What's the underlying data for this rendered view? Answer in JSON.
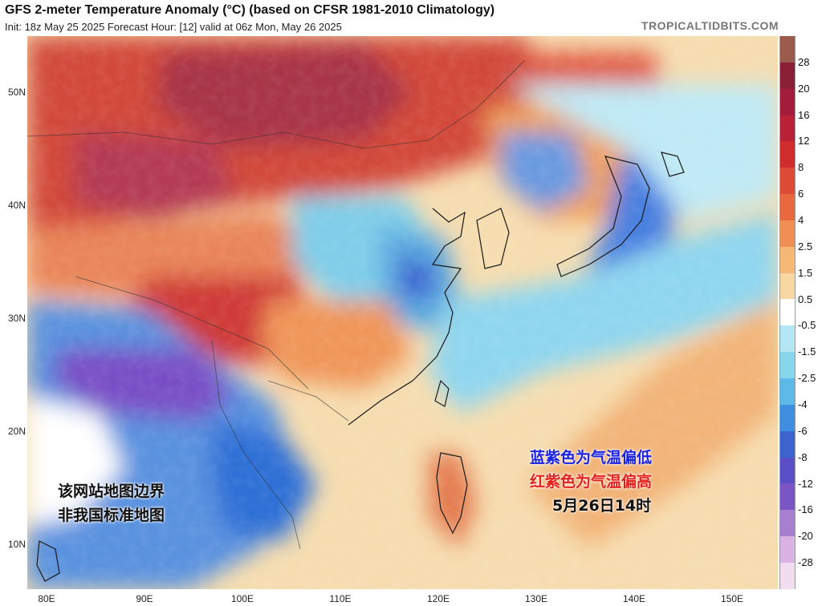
{
  "header": {
    "title": "GFS 2-meter Temperature Anomaly (°C) (based on CFSR 1981-2010 Climatology)",
    "subtitle": "Init: 18z May 25 2025   Forecast Hour: [12]   valid at 06z Mon, May 26 2025",
    "brand": "TROPICALTIDBITS.COM"
  },
  "axes": {
    "lat_labels": [
      "50N",
      "40N",
      "30N",
      "20N",
      "10N"
    ],
    "lon_labels": [
      "80E",
      "90E",
      "100E",
      "110E",
      "120E",
      "130E",
      "140E",
      "150E"
    ]
  },
  "colorbar": {
    "labels": [
      "28",
      "20",
      "16",
      "12",
      "8",
      "6",
      "4",
      "2.5",
      "1.5",
      "0.5",
      "-0.5",
      "-1.5",
      "-2.5",
      "-4",
      "-6",
      "-8",
      "-12",
      "-16",
      "-20",
      "-28"
    ],
    "colors": [
      "#9c5a4c",
      "#8a2036",
      "#a31c3a",
      "#b82136",
      "#cf2d2d",
      "#dd4a36",
      "#e8693f",
      "#f08f54",
      "#f6b777",
      "#f7d7a2",
      "#ffffff",
      "#b4e7f3",
      "#86d6ee",
      "#5db9e8",
      "#3f8ee0",
      "#3d63cf",
      "#5a4fc7",
      "#7a55c4",
      "#a77fcf",
      "#d8b3e3",
      "#f2dcef"
    ]
  },
  "annotations": {
    "left_line1": "该网站地图边界",
    "left_line2": "非我国标准地图",
    "right_line1": "蓝紫色为气温偏低",
    "right_line2": "红紫色为气温偏高",
    "right_line3": "5月26日14时",
    "right_line1_color": "#1a22e6",
    "right_line2_color": "#e6201a",
    "right_line3_color": "#111111"
  }
}
